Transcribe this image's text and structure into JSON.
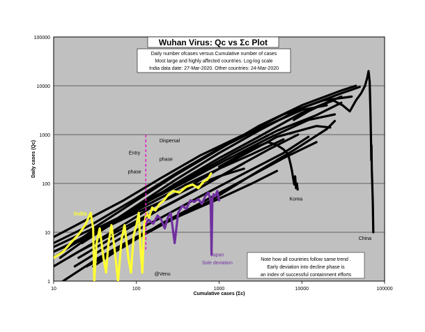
{
  "chart_data": {
    "type": "line",
    "title": "Wuhan Virus: Qc vs Σc Plot",
    "subtitle_lines": [
      "Daily number ofcases versus Cumulative number of cases",
      "Most large and highly affected countries. Log-log scale",
      "India data date: 27-Mar-2020. Other countries: 24-Mar-2020"
    ],
    "xlabel": "Cumulative cases (Σc)",
    "ylabel": "Daily cases (Qc)",
    "x_scale": "log",
    "y_scale": "log",
    "xlim": [
      10,
      100000
    ],
    "ylim": [
      1,
      100000
    ],
    "x_ticks": [
      {
        "value": 10,
        "label": "10"
      },
      {
        "value": 100,
        "label": "100"
      },
      {
        "value": 1000,
        "label": "1000"
      },
      {
        "value": 10000,
        "label": "10000"
      },
      {
        "value": 100000,
        "label": "100000"
      }
    ],
    "y_ticks": [
      {
        "value": 1,
        "label": "1"
      },
      {
        "value": 10,
        "label": "10"
      },
      {
        "value": 100,
        "label": "100"
      },
      {
        "value": 1000,
        "label": "1000"
      },
      {
        "value": 10000,
        "label": "10000"
      },
      {
        "value": 100000,
        "label": "100000"
      }
    ],
    "grid": "horizontal",
    "plot_background": "#c0c0c0",
    "colors": {
      "other": "#000000",
      "india": "#ffff33",
      "japan": "#7030a0",
      "phase_line": "#e020c0"
    },
    "series": [
      {
        "name": "India",
        "color": "#ffff33",
        "points": [
          [
            10,
            3
          ],
          [
            13,
            4
          ],
          [
            16,
            6
          ],
          [
            20,
            9
          ],
          [
            24,
            14
          ],
          [
            28,
            25
          ],
          [
            30,
            12
          ],
          [
            31,
            1
          ],
          [
            33,
            6
          ],
          [
            36,
            12
          ],
          [
            40,
            3
          ],
          [
            43,
            1.5
          ],
          [
            46,
            6
          ],
          [
            50,
            14
          ],
          [
            55,
            4
          ],
          [
            60,
            1
          ],
          [
            66,
            7
          ],
          [
            72,
            14
          ],
          [
            80,
            3
          ],
          [
            86,
            1.5
          ],
          [
            93,
            9
          ],
          [
            100,
            14
          ],
          [
            107,
            25
          ],
          [
            112,
            5
          ],
          [
            118,
            1.5
          ],
          [
            124,
            14
          ],
          [
            132,
            25
          ],
          [
            142,
            20
          ],
          [
            155,
            32
          ],
          [
            170,
            28
          ],
          [
            190,
            38
          ],
          [
            215,
            45
          ],
          [
            245,
            60
          ],
          [
            280,
            70
          ],
          [
            330,
            65
          ],
          [
            400,
            85
          ],
          [
            480,
            95
          ],
          [
            560,
            80
          ],
          [
            650,
            110
          ],
          [
            720,
            120
          ],
          [
            800,
            160
          ]
        ]
      },
      {
        "name": "Japan",
        "color": "#7030a0",
        "points": [
          [
            120,
            12
          ],
          [
            140,
            18
          ],
          [
            160,
            15
          ],
          [
            180,
            22
          ],
          [
            200,
            18
          ],
          [
            220,
            12
          ],
          [
            240,
            20
          ],
          [
            260,
            25
          ],
          [
            290,
            6
          ],
          [
            320,
            25
          ],
          [
            360,
            35
          ],
          [
            400,
            30
          ],
          [
            450,
            45
          ],
          [
            500,
            42
          ],
          [
            560,
            48
          ],
          [
            620,
            38
          ],
          [
            680,
            55
          ],
          [
            740,
            65
          ],
          [
            790,
            45
          ],
          [
            810,
            3.5
          ],
          [
            830,
            50
          ],
          [
            860,
            60
          ],
          [
            900,
            55
          ],
          [
            950,
            70
          ],
          [
            1000,
            45
          ]
        ]
      },
      {
        "name": "China",
        "color": "#000000",
        "points": [
          [
            8000,
            2000
          ],
          [
            12000,
            3000
          ],
          [
            17000,
            4000
          ],
          [
            24000,
            5000
          ],
          [
            31000,
            4000
          ],
          [
            38000,
            3000
          ],
          [
            45000,
            5000
          ],
          [
            52000,
            7000
          ],
          [
            58000,
            10000
          ],
          [
            62000,
            15000
          ],
          [
            64000,
            20000
          ],
          [
            66000,
            12000
          ],
          [
            67500,
            3000
          ],
          [
            68500,
            800
          ],
          [
            69000,
            300
          ],
          [
            69500,
            600
          ],
          [
            70000,
            200
          ],
          [
            71000,
            100
          ],
          [
            72000,
            40
          ],
          [
            73000,
            10
          ]
        ]
      },
      {
        "name": "Korea",
        "color": "#000000",
        "points": [
          [
            1000,
            220
          ],
          [
            1800,
            380
          ],
          [
            2800,
            560
          ],
          [
            3900,
            700
          ],
          [
            5000,
            610
          ],
          [
            6000,
            500
          ],
          [
            6800,
            400
          ],
          [
            7300,
            250
          ],
          [
            7600,
            180
          ],
          [
            7900,
            120
          ],
          [
            8100,
            95
          ],
          [
            8300,
            140
          ],
          [
            8500,
            80
          ],
          [
            8700,
            100
          ],
          [
            8900,
            75
          ]
        ]
      },
      {
        "values": [
          [
            10,
            4
          ],
          [
            30,
            9
          ],
          [
            100,
            35
          ],
          [
            300,
            120
          ],
          [
            1000,
            420
          ],
          [
            3000,
            1200
          ],
          [
            10000,
            3500
          ],
          [
            30000,
            7000
          ],
          [
            50000,
            9500
          ]
        ]
      },
      {
        "values": [
          [
            10,
            5
          ],
          [
            30,
            12
          ],
          [
            100,
            45
          ],
          [
            300,
            150
          ],
          [
            1000,
            500
          ],
          [
            3000,
            1500
          ],
          [
            10000,
            4000
          ],
          [
            30000,
            8000
          ],
          [
            45000,
            10000
          ]
        ]
      },
      {
        "values": [
          [
            10,
            3
          ],
          [
            30,
            11
          ],
          [
            100,
            30
          ],
          [
            300,
            100
          ],
          [
            1000,
            330
          ],
          [
            3000,
            900
          ],
          [
            10000,
            2800
          ],
          [
            30000,
            6000
          ]
        ]
      },
      {
        "values": [
          [
            10,
            6
          ],
          [
            30,
            15
          ],
          [
            100,
            50
          ],
          [
            300,
            160
          ],
          [
            1000,
            520
          ],
          [
            3000,
            1300
          ],
          [
            10000,
            3200
          ],
          [
            20000,
            4000
          ]
        ]
      },
      {
        "values": [
          [
            10,
            4
          ],
          [
            20,
            7
          ],
          [
            50,
            16
          ],
          [
            150,
            50
          ],
          [
            500,
            150
          ],
          [
            1500,
            420
          ],
          [
            5000,
            1200
          ],
          [
            15000,
            2500
          ],
          [
            30000,
            4500
          ]
        ]
      },
      {
        "values": [
          [
            12,
            3
          ],
          [
            40,
            13
          ],
          [
            120,
            38
          ],
          [
            400,
            110
          ],
          [
            1200,
            300
          ],
          [
            4000,
            850
          ],
          [
            12000,
            2000
          ],
          [
            25000,
            2600
          ]
        ]
      },
      {
        "values": [
          [
            15,
            3
          ],
          [
            50,
            10
          ],
          [
            150,
            32
          ],
          [
            500,
            100
          ],
          [
            1500,
            300
          ],
          [
            5000,
            900
          ],
          [
            15000,
            1500
          ],
          [
            22000,
            1400
          ]
        ]
      },
      {
        "values": [
          [
            10,
            8
          ],
          [
            25,
            18
          ],
          [
            70,
            45
          ],
          [
            200,
            130
          ],
          [
            600,
            380
          ],
          [
            2000,
            1000
          ],
          [
            6000,
            2600
          ],
          [
            18000,
            5000
          ],
          [
            40000,
            6000
          ]
        ]
      },
      {
        "values": [
          [
            18,
            2
          ],
          [
            60,
            7
          ],
          [
            200,
            20
          ],
          [
            600,
            55
          ],
          [
            2000,
            160
          ],
          [
            6000,
            420
          ],
          [
            12000,
            900
          ]
        ]
      },
      {
        "values": [
          [
            15,
            5
          ],
          [
            40,
            12
          ],
          [
            100,
            25
          ],
          [
            250,
            50
          ],
          [
            500,
            90
          ],
          [
            1000,
            140
          ],
          [
            2000,
            200
          ]
        ]
      },
      {
        "values": [
          [
            20,
            3
          ],
          [
            60,
            9
          ],
          [
            180,
            28
          ],
          [
            500,
            70
          ],
          [
            1500,
            200
          ],
          [
            4000,
            500
          ],
          [
            9000,
            1000
          ]
        ]
      },
      {
        "values": [
          [
            25,
            2
          ],
          [
            70,
            5
          ],
          [
            200,
            15
          ],
          [
            600,
            40
          ],
          [
            2000,
            120
          ],
          [
            6000,
            330
          ],
          [
            15000,
            700
          ]
        ]
      },
      {
        "values": [
          [
            22,
            6
          ],
          [
            60,
            18
          ],
          [
            150,
            40
          ],
          [
            400,
            95
          ],
          [
            1000,
            200
          ],
          [
            2500,
            400
          ],
          [
            6000,
            800
          ]
        ]
      },
      {
        "values": [
          [
            30,
            2
          ],
          [
            80,
            6
          ],
          [
            250,
            17
          ],
          [
            800,
            45
          ],
          [
            2500,
            150
          ],
          [
            8000,
            480
          ],
          [
            20000,
            1300
          ],
          [
            25000,
            1900
          ]
        ]
      },
      {
        "values": [
          [
            10,
            2
          ],
          [
            20,
            4
          ],
          [
            50,
            9
          ],
          [
            120,
            20
          ],
          [
            300,
            45
          ],
          [
            800,
            110
          ],
          [
            2000,
            260
          ]
        ]
      },
      {
        "values": [
          [
            13,
            1
          ],
          [
            35,
            3
          ],
          [
            100,
            8
          ],
          [
            300,
            20
          ],
          [
            900,
            45
          ],
          [
            2500,
            100
          ],
          [
            5000,
            180
          ]
        ]
      }
    ],
    "annotations": [
      {
        "text": "Entry",
        "x": 95,
        "y": 390
      },
      {
        "text": "phase",
        "x": 95,
        "y": 160
      },
      {
        "text": "Dispersal",
        "x": 190,
        "y": 700
      },
      {
        "text": "phase",
        "x": 190,
        "y": 290
      },
      {
        "text": "India",
        "x": 21,
        "y": 22
      },
      {
        "text": "Korea",
        "x": 8500,
        "y": 45
      },
      {
        "text": "China",
        "x": 58000,
        "y": 7
      },
      {
        "text": "Japan",
        "x": 950,
        "y": 3.2
      },
      {
        "text": "Sole deviation",
        "x": 950,
        "y": 2.2
      },
      {
        "text": "@Venu",
        "x": 165,
        "y": 1.3
      },
      {
        "text": "Note how all countries follow same trend .",
        "x": 10000,
        "y": 2.6
      },
      {
        "text": "Early deviation into decline phase is",
        "x": 10000,
        "y": 1.8
      },
      {
        "text": "an index of successful containment efforts",
        "x": 10000,
        "y": 1.25
      }
    ],
    "phase_boundary_x": 130
  }
}
